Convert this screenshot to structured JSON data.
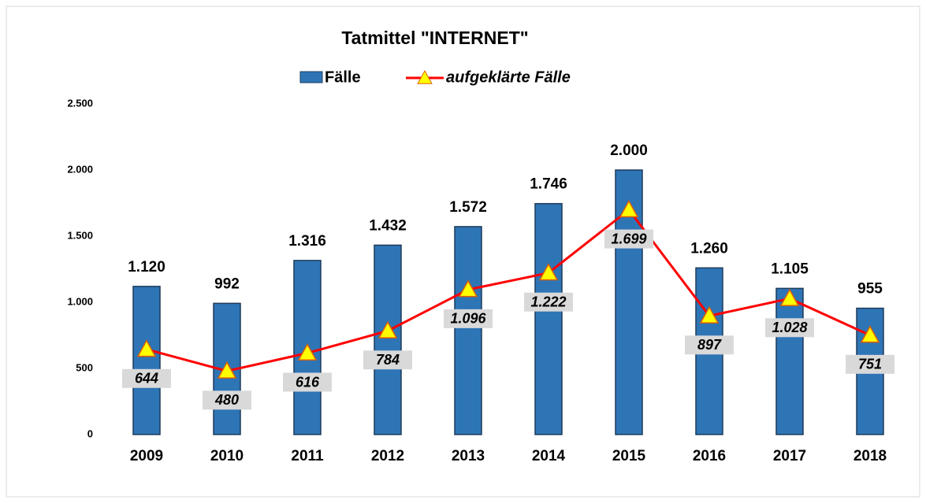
{
  "chart_data": {
    "type": "bar",
    "title": "Tatmittel \"INTERNET\"",
    "categories": [
      "2009",
      "2010",
      "2011",
      "2012",
      "2013",
      "2014",
      "2015",
      "2016",
      "2017",
      "2018"
    ],
    "series": [
      {
        "name": "Fälle",
        "type": "bar",
        "color": "#2e75b6",
        "values": [
          1120,
          992,
          1316,
          1432,
          1572,
          1746,
          2000,
          1260,
          1105,
          955
        ],
        "value_labels": [
          "1.120",
          "992",
          "1.316",
          "1.432",
          "1.572",
          "1.746",
          "2.000",
          "1.260",
          "1.105",
          "955"
        ]
      },
      {
        "name": "aufgeklärte Fälle",
        "type": "line",
        "color": "#ff0000",
        "marker_color": "#ffff00",
        "values": [
          644,
          480,
          616,
          784,
          1096,
          1222,
          1699,
          897,
          1028,
          751
        ],
        "value_labels": [
          "644",
          "480",
          "616",
          "784",
          "1.096",
          "1.222",
          "1.699",
          "897",
          "1.028",
          "751"
        ]
      }
    ],
    "ylim": [
      0,
      2500
    ],
    "yticks": [
      0,
      500,
      {
        "value": 1000,
        "label": "1.000"
      },
      {
        "value": 1500,
        "label": "1.500"
      },
      {
        "value": 2000,
        "label": "2.000"
      },
      {
        "value": 2500,
        "label": "2.500"
      }
    ],
    "grid": false
  }
}
